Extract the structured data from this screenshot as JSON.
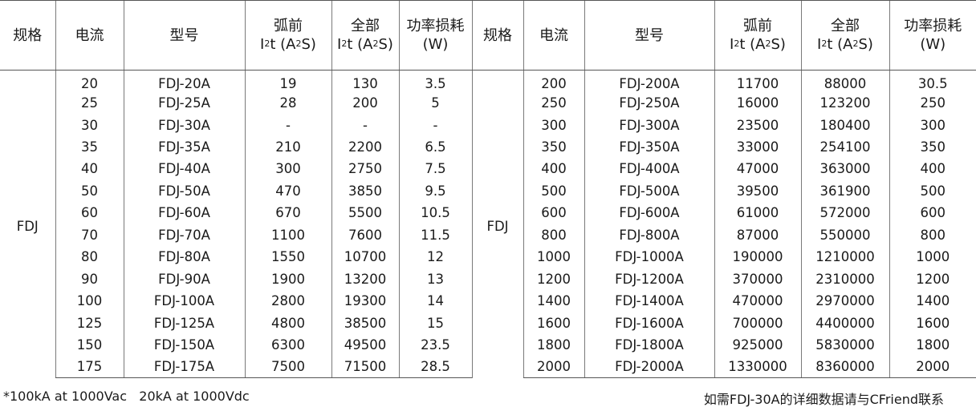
{
  "headers": {
    "spec": "规格",
    "current": "电流",
    "model": "型号",
    "arc_line1": "弧前",
    "full_line1": "全部",
    "i2t_prefix": "I",
    "i2t_mid": "t (A",
    "i2t_suffix": "S)",
    "sup": "2",
    "power_line1": "功率损耗",
    "power_line2": "(W)"
  },
  "left_spec": "FDJ",
  "right_spec": "FDJ",
  "left_rows": [
    {
      "current": "20",
      "model": "FDJ-20A",
      "arc": "19",
      "full": "130",
      "power": "3.5"
    },
    {
      "current": "25",
      "model": "FDJ-25A",
      "arc": "28",
      "full": "200",
      "power": "5"
    },
    {
      "current": "30",
      "model": "FDJ-30A",
      "arc": "-",
      "full": "-",
      "power": "-"
    },
    {
      "current": "35",
      "model": "FDJ-35A",
      "arc": "210",
      "full": "2200",
      "power": "6.5"
    },
    {
      "current": "40",
      "model": "FDJ-40A",
      "arc": "300",
      "full": "2750",
      "power": "7.5"
    },
    {
      "current": "50",
      "model": "FDJ-50A",
      "arc": "470",
      "full": "3850",
      "power": "9.5"
    },
    {
      "current": "60",
      "model": "FDJ-60A",
      "arc": "670",
      "full": "5500",
      "power": "10.5"
    },
    {
      "current": "70",
      "model": "FDJ-70A",
      "arc": "1100",
      "full": "7600",
      "power": "11.5"
    },
    {
      "current": "80",
      "model": "FDJ-80A",
      "arc": "1550",
      "full": "10700",
      "power": "12"
    },
    {
      "current": "90",
      "model": "FDJ-90A",
      "arc": "1900",
      "full": "13200",
      "power": "13"
    },
    {
      "current": "100",
      "model": "FDJ-100A",
      "arc": "2800",
      "full": "19300",
      "power": "14"
    },
    {
      "current": "125",
      "model": "FDJ-125A",
      "arc": "4800",
      "full": "38500",
      "power": "15"
    },
    {
      "current": "150",
      "model": "FDJ-150A",
      "arc": "6300",
      "full": "49500",
      "power": "23.5"
    },
    {
      "current": "175",
      "model": "FDJ-175A",
      "arc": "7500",
      "full": "71500",
      "power": "28.5"
    }
  ],
  "right_rows": [
    {
      "current": "200",
      "model": "FDJ-200A",
      "arc": "11700",
      "full": "88000",
      "power": "30.5"
    },
    {
      "current": "250",
      "model": "FDJ-250A",
      "arc": "16000",
      "full": "123200",
      "power": "250"
    },
    {
      "current": "300",
      "model": "FDJ-300A",
      "arc": "23500",
      "full": "180400",
      "power": "300"
    },
    {
      "current": "350",
      "model": "FDJ-350A",
      "arc": "33000",
      "full": "254100",
      "power": "350"
    },
    {
      "current": "400",
      "model": "FDJ-400A",
      "arc": "47000",
      "full": "363000",
      "power": "400"
    },
    {
      "current": "500",
      "model": "FDJ-500A",
      "arc": "39500",
      "full": "361900",
      "power": "500"
    },
    {
      "current": "600",
      "model": "FDJ-600A",
      "arc": "61000",
      "full": "572000",
      "power": "600"
    },
    {
      "current": "800",
      "model": "FDJ-800A",
      "arc": "87000",
      "full": "550000",
      "power": "800"
    },
    {
      "current": "1000",
      "model": "FDJ-1000A",
      "arc": "190000",
      "full": "1210000",
      "power": "1000"
    },
    {
      "current": "1200",
      "model": "FDJ-1200A",
      "arc": "370000",
      "full": "2310000",
      "power": "1200"
    },
    {
      "current": "1400",
      "model": "FDJ-1400A",
      "arc": "470000",
      "full": "2970000",
      "power": "1400"
    },
    {
      "current": "1600",
      "model": "FDJ-1600A",
      "arc": "700000",
      "full": "4400000",
      "power": "1600"
    },
    {
      "current": "1800",
      "model": "FDJ-1800A",
      "arc": "925000",
      "full": "5830000",
      "power": "1800"
    },
    {
      "current": "2000",
      "model": "FDJ-2000A",
      "arc": "1330000",
      "full": "8360000",
      "power": "2000"
    }
  ],
  "footnote_left": "*100kA at 1000Vac   20kA at 1000Vdc",
  "footnote_right": "如需FDJ-30A的详细数据请与CFriend联系"
}
